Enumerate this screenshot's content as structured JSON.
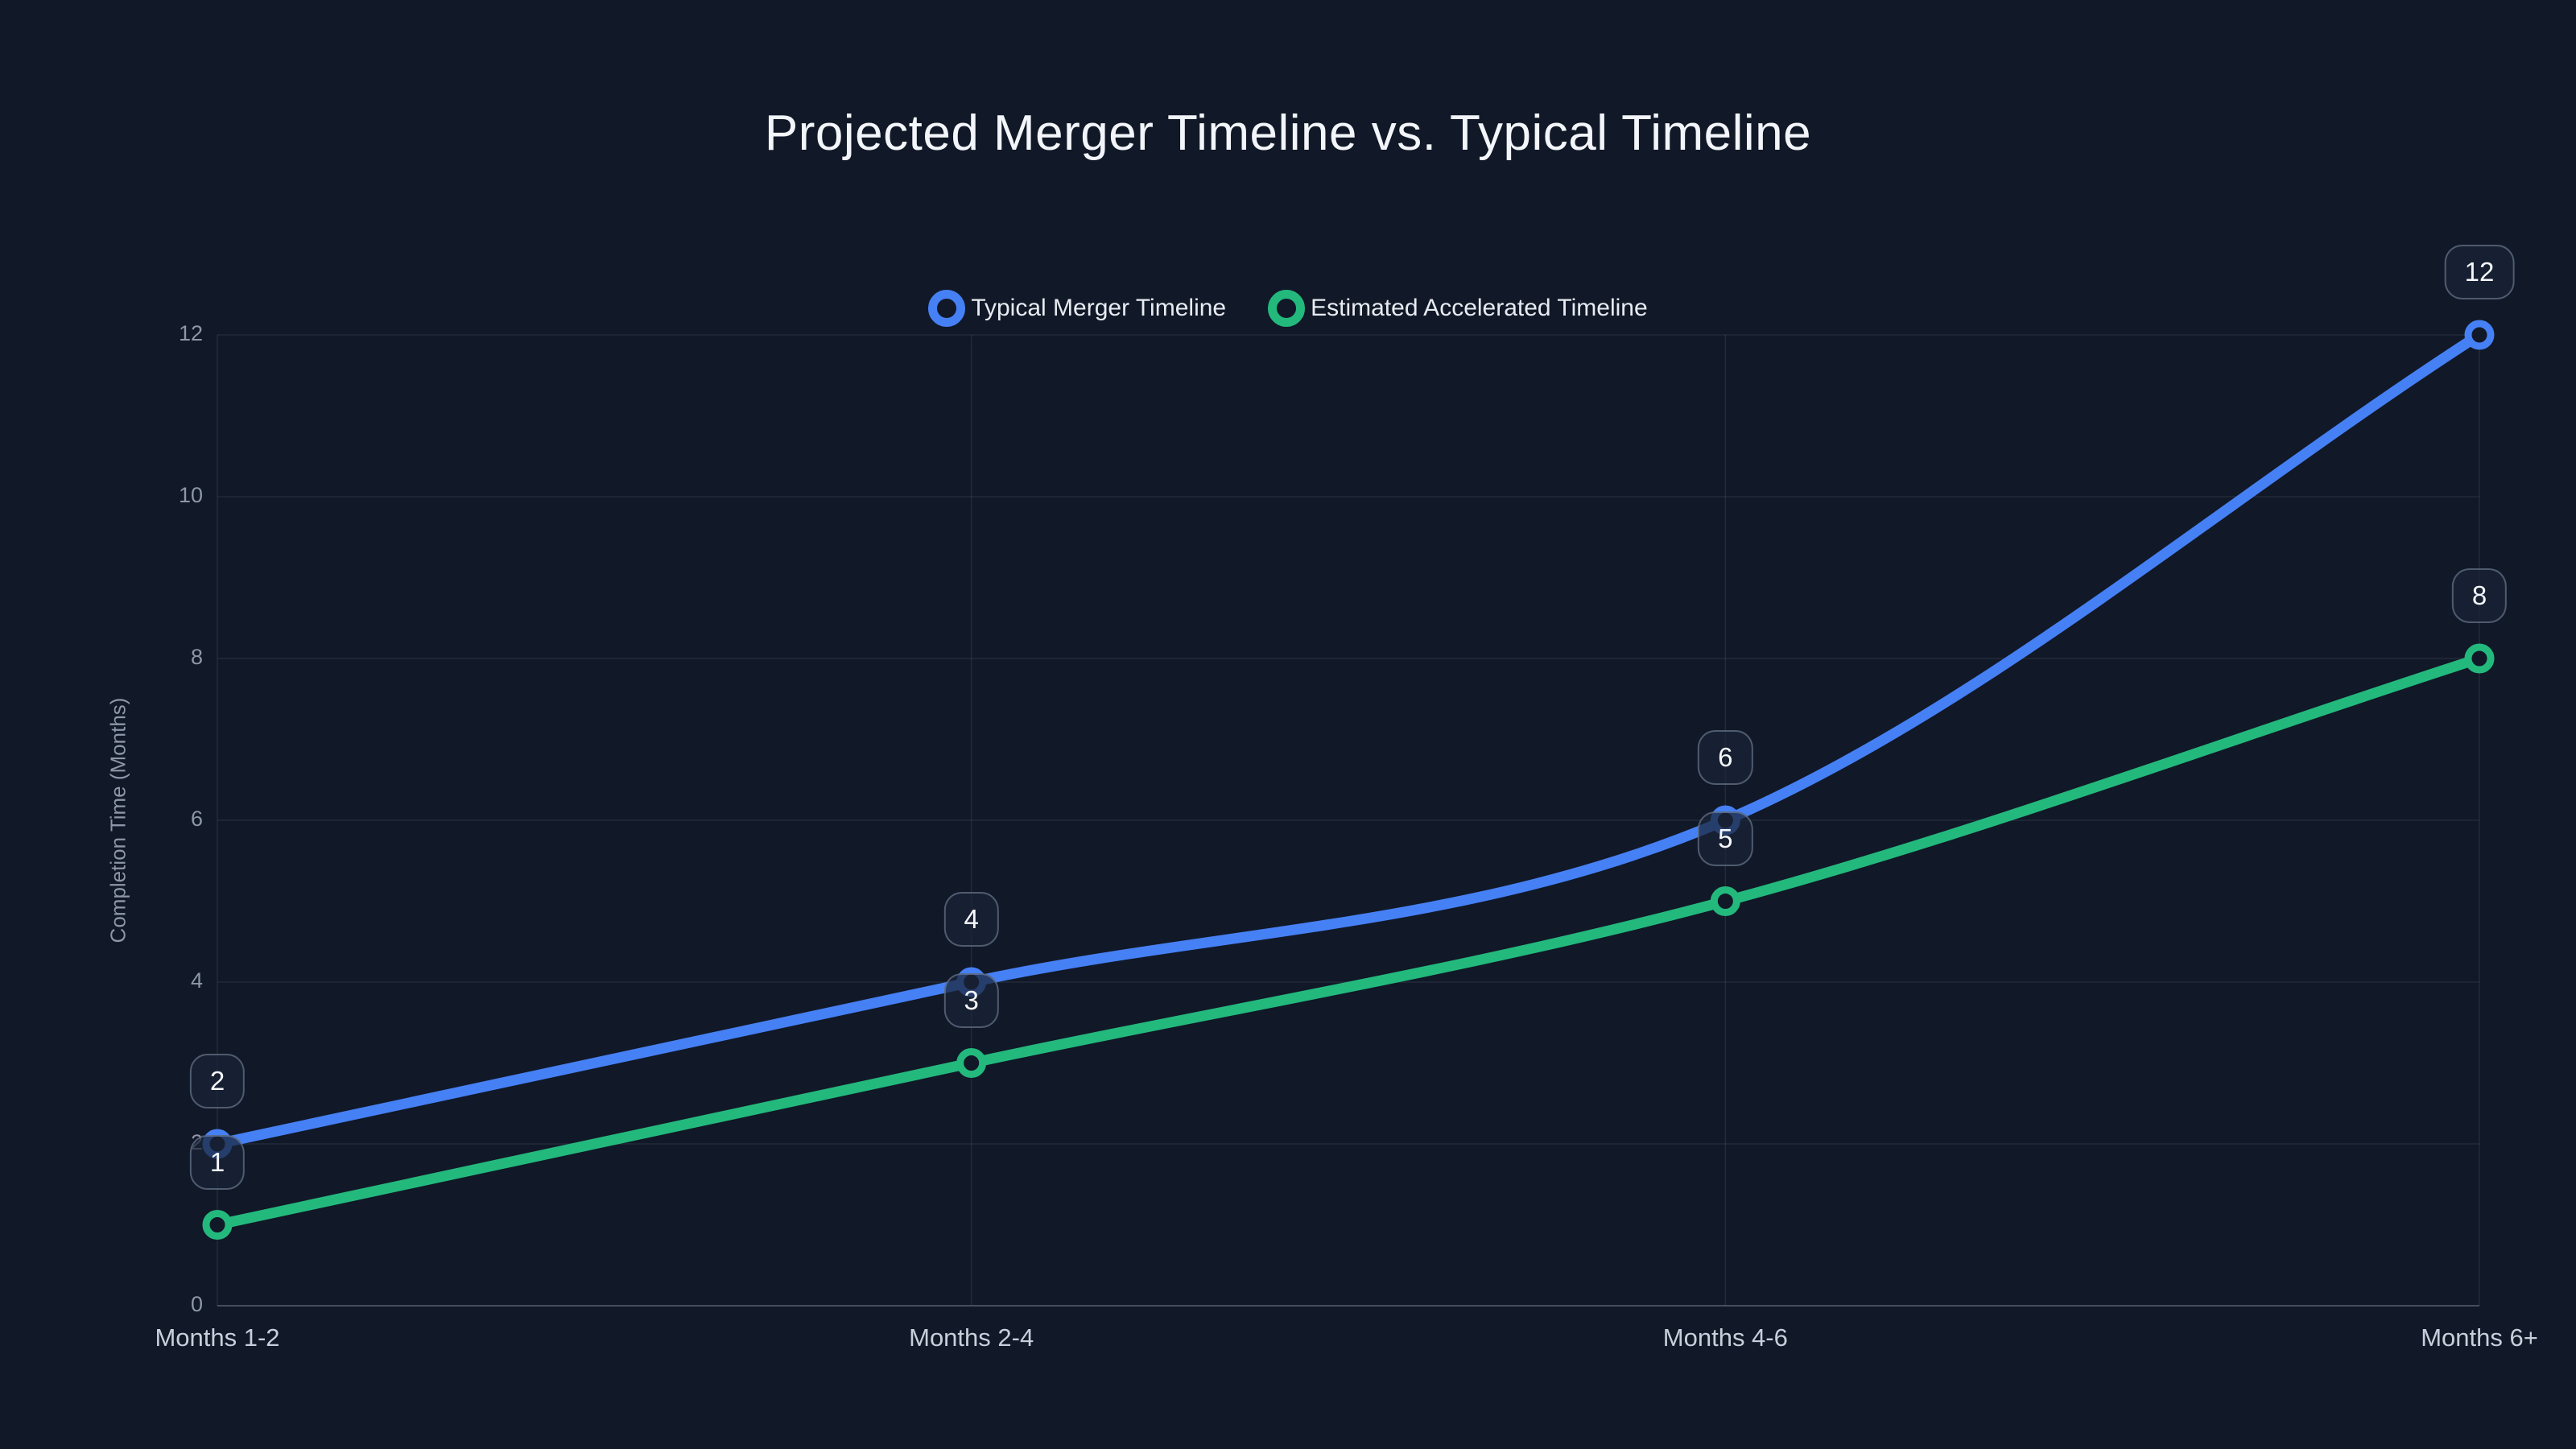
{
  "title": "Projected Merger Timeline vs. Typical Timeline",
  "chart_data": {
    "type": "line",
    "categories": [
      "Months 1-2",
      "Months 2-4",
      "Months 4-6",
      "Months 6+"
    ],
    "series": [
      {
        "name": "Typical Merger Timeline",
        "color": "#4680F5",
        "values": [
          2,
          4,
          6,
          12
        ]
      },
      {
        "name": "Estimated Accelerated Timeline",
        "color": "#23B97D",
        "values": [
          1,
          3,
          5,
          8
        ]
      }
    ],
    "xlabel": "",
    "ylabel": "Completion Time (Months)",
    "ylim": [
      0,
      12
    ],
    "yticks": [
      0,
      2,
      4,
      6,
      8,
      10,
      12
    ],
    "grid": true,
    "curve": "monotone",
    "marker_style": "open-circle",
    "point_labels": true,
    "legend_position": "top-center"
  },
  "colors": {
    "background": "#111827",
    "title_text": "#F2F5F9",
    "legend_text": "#E8ECF2",
    "axis_tick_text": "#8D97A9",
    "x_label_text": "#C7CFDB",
    "grid_line": "rgba(148,163,184,0.14)",
    "axis_line": "rgba(148,163,184,0.32)",
    "badge_background": "rgba(26,36,56,0.72)",
    "badge_border": "rgba(148,163,184,0.45)",
    "badge_text": "#F5F7FA"
  }
}
